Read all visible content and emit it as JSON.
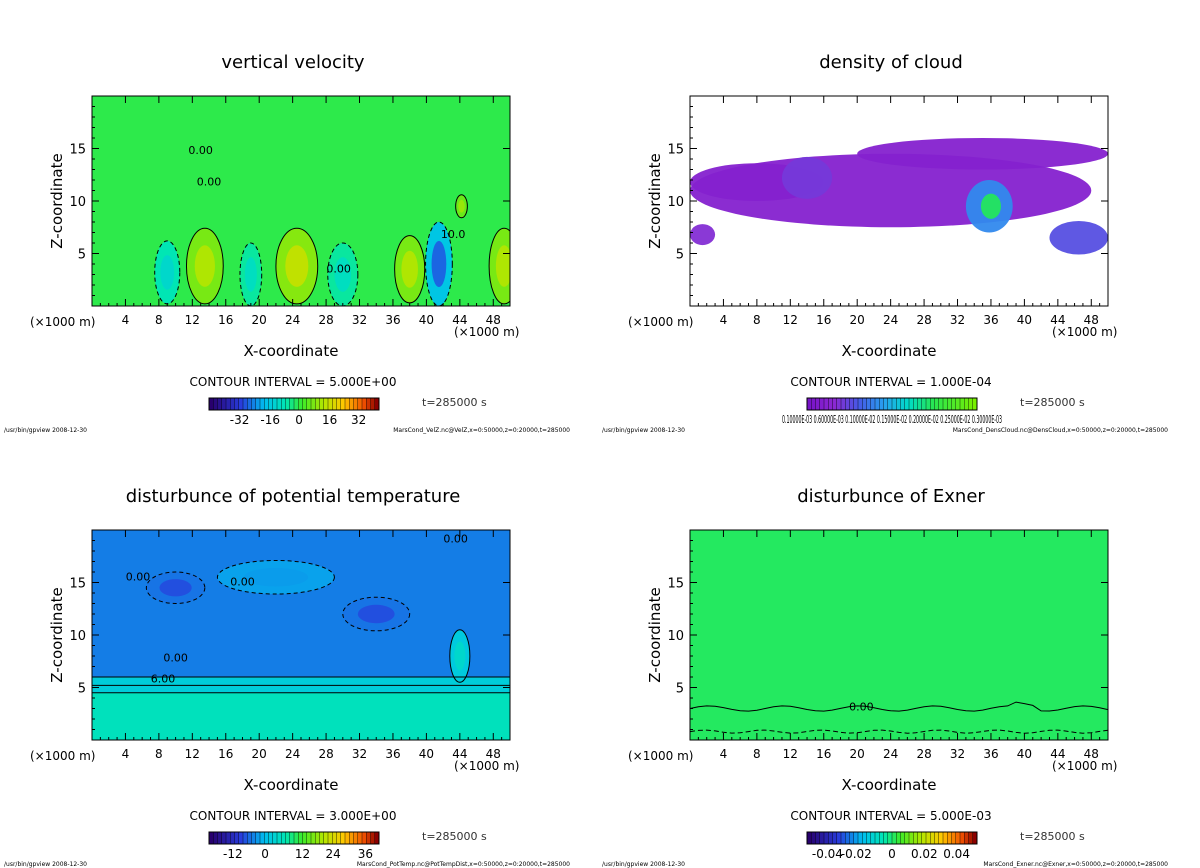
{
  "footer_program": "/usr/bin/gpview  2008-12-30",
  "time_label": "t=285000 s",
  "panels": [
    {
      "title": "vertical velocity",
      "contour_interval": "CONTOUR INTERVAL = 5.000E+00",
      "file_info": "MarsCond_VelZ.nc@VelZ,x=0:50000,z=0:20000,t=285000",
      "colorbar_ticks": [
        "-32",
        "-16",
        "0",
        "16",
        "32"
      ],
      "contour_labels": [
        "0.00",
        "0.00",
        "0.00",
        "10.0"
      ]
    },
    {
      "title": "density of cloud",
      "contour_interval": "CONTOUR INTERVAL = 1.000E-04",
      "file_info": "MarsCond_DensCloud.nc@DensCloud,x=0:50000,z=0:20000,t=285000",
      "colorbar_ticks": [
        "0.10000E-03 0.60000E-03 0.10000E-02 0.15000E-02 0.20000E-02 0.25000E-02 0.30000E-03"
      ],
      "contour_labels": []
    },
    {
      "title": "disturbunce of potential temperature",
      "contour_interval": "CONTOUR INTERVAL = 3.000E+00",
      "file_info": "MarsCond_PotTemp.nc@PotTempDist,x=0:50000,z=0:20000,t=285000",
      "colorbar_ticks": [
        "-12",
        "0",
        "12",
        "24",
        "36"
      ],
      "contour_labels": [
        "0.00",
        "0.00",
        "0.00",
        "0.00",
        "6.00"
      ]
    },
    {
      "title": "disturbunce of Exner",
      "contour_interval": "CONTOUR INTERVAL = 5.000E-03",
      "file_info": "MarsCond_Exner.nc@Exner,x=0:50000,z=0:20000,t=285000",
      "colorbar_ticks": [
        "-0.04",
        "-0.02",
        "0",
        "0.02",
        "0.04"
      ],
      "contour_labels": [
        "0.00"
      ]
    }
  ],
  "chart_data": [
    {
      "type": "heatmap",
      "title": "vertical velocity",
      "xlabel": "X-coordinate",
      "ylabel": "Z-coordinate",
      "x_unit_label": "(×1000 m)",
      "z_unit_label": "(×1000 m)",
      "xlim": [
        0,
        50
      ],
      "ylim": [
        0,
        20
      ],
      "x_ticks": [
        4,
        8,
        12,
        16,
        20,
        24,
        28,
        32,
        36,
        40,
        44,
        48
      ],
      "y_ticks": [
        5,
        10,
        15
      ],
      "colorbar_range": [
        -40,
        40
      ],
      "background_value": 2,
      "features": [
        {
          "x": 13.5,
          "z": 3.8,
          "rx": 2.2,
          "rz": 3.6,
          "value": 14
        },
        {
          "x": 24.5,
          "z": 3.8,
          "rx": 2.5,
          "rz": 3.6,
          "value": 16
        },
        {
          "x": 38,
          "z": 3.5,
          "rx": 1.8,
          "rz": 3.2,
          "value": 14
        },
        {
          "x": 49.3,
          "z": 3.8,
          "rx": 1.8,
          "rz": 3.6,
          "value": 14
        },
        {
          "x": 9,
          "z": 3.2,
          "rx": 1.5,
          "rz": 3,
          "value": -8
        },
        {
          "x": 19,
          "z": 3,
          "rx": 1.3,
          "rz": 3,
          "value": -6
        },
        {
          "x": 30,
          "z": 3,
          "rx": 1.8,
          "rz": 3,
          "value": -6
        },
        {
          "x": 41.5,
          "z": 4,
          "rx": 1.6,
          "rz": 4,
          "value": -22
        },
        {
          "x": 44.2,
          "z": 9.5,
          "rx": 0.7,
          "rz": 1.1,
          "value": 12
        }
      ]
    },
    {
      "type": "heatmap",
      "title": "density of cloud",
      "xlabel": "X-coordinate",
      "ylabel": "Z-coordinate",
      "x_unit_label": "(×1000 m)",
      "z_unit_label": "(×1000 m)",
      "xlim": [
        0,
        50
      ],
      "ylim": [
        0,
        20
      ],
      "x_ticks": [
        4,
        8,
        12,
        16,
        20,
        24,
        28,
        32,
        36,
        40,
        44,
        48
      ],
      "y_ticks": [
        5,
        10,
        15
      ],
      "colorbar_range": [
        0,
        0.003
      ],
      "features": [
        {
          "x": 24,
          "z": 11,
          "rx": 24,
          "rz": 3.5,
          "value": 0.0003
        },
        {
          "x": 8,
          "z": 11.8,
          "rx": 8,
          "rz": 1.8,
          "value": 0.0003
        },
        {
          "x": 35,
          "z": 14.5,
          "rx": 15,
          "rz": 1.5,
          "value": 0.0003
        },
        {
          "x": 14,
          "z": 12.2,
          "rx": 3,
          "rz": 2,
          "value": 0.0006
        },
        {
          "x": 35.8,
          "z": 9.5,
          "rx": 2.8,
          "rz": 2.5,
          "value": 0.0012
        },
        {
          "x": 36,
          "z": 9.5,
          "rx": 1.2,
          "rz": 1.2,
          "value": 0.0022
        },
        {
          "x": 46.5,
          "z": 6.5,
          "rx": 3.5,
          "rz": 1.6,
          "value": 0.0008
        },
        {
          "x": 1.5,
          "z": 6.8,
          "rx": 1.5,
          "rz": 1,
          "value": 0.0005
        }
      ]
    },
    {
      "type": "heatmap",
      "title": "disturbunce of potential temperature",
      "xlabel": "X-coordinate",
      "ylabel": "Z-coordinate",
      "x_unit_label": "(×1000 m)",
      "z_unit_label": "(×1000 m)",
      "xlim": [
        0,
        50
      ],
      "ylim": [
        0,
        20
      ],
      "x_ticks": [
        4,
        8,
        12,
        16,
        20,
        24,
        28,
        32,
        36,
        40,
        44,
        48
      ],
      "y_ticks": [
        5,
        10,
        15
      ],
      "colorbar_range": [
        -18,
        42
      ],
      "layers": [
        {
          "z_from": 0,
          "z_to": 4.5,
          "value": 8
        },
        {
          "z_from": 4.5,
          "z_to": 6,
          "value": 4
        },
        {
          "z_from": 6,
          "z_to": 20,
          "value": -3
        }
      ],
      "features": [
        {
          "x": 22,
          "z": 15.5,
          "rx": 7,
          "rz": 1.6,
          "value": -1
        },
        {
          "x": 44,
          "z": 8,
          "rx": 1.2,
          "rz": 2.5,
          "value": 6
        },
        {
          "x": 10,
          "z": 14.5,
          "rx": 3.5,
          "rz": 1.5,
          "value": -6
        },
        {
          "x": 34,
          "z": 12,
          "rx": 4,
          "rz": 1.6,
          "value": -6
        }
      ]
    },
    {
      "type": "heatmap",
      "title": "disturbunce of Exner",
      "xlabel": "X-coordinate",
      "ylabel": "Z-coordinate",
      "x_unit_label": "(×1000 m)",
      "z_unit_label": "(×1000 m)",
      "xlim": [
        0,
        50
      ],
      "ylim": [
        0,
        20
      ],
      "x_ticks": [
        4,
        8,
        12,
        16,
        20,
        24,
        28,
        32,
        36,
        40,
        44,
        48
      ],
      "y_ticks": [
        5,
        10,
        15
      ],
      "colorbar_range": [
        -0.05,
        0.05
      ],
      "background_value": 0.001,
      "zero_contour_z": 3
    }
  ]
}
